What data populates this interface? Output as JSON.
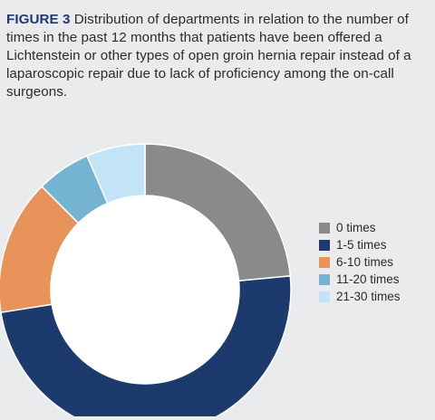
{
  "figure": {
    "label": "FIGURE 3",
    "caption": "Distribution of departments in relation to the number of times in the past 12 months that patients have been offered a Lichtenstein or other types of open groin hernia repair instead of a laparoscopic repair due to lack of proficiency among the on-call surgeons."
  },
  "chart_data": {
    "type": "pie",
    "donut": true,
    "categories": [
      "0 times",
      "1-5 times",
      "6-10 times",
      "11-20 times",
      "21-30 times"
    ],
    "values": [
      23.5,
      49,
      15,
      6,
      6.5
    ],
    "colors": [
      "#8a8a8a",
      "#1c3a6e",
      "#e8935a",
      "#74b3d2",
      "#c3e3f6"
    ],
    "legend_position": "right"
  }
}
